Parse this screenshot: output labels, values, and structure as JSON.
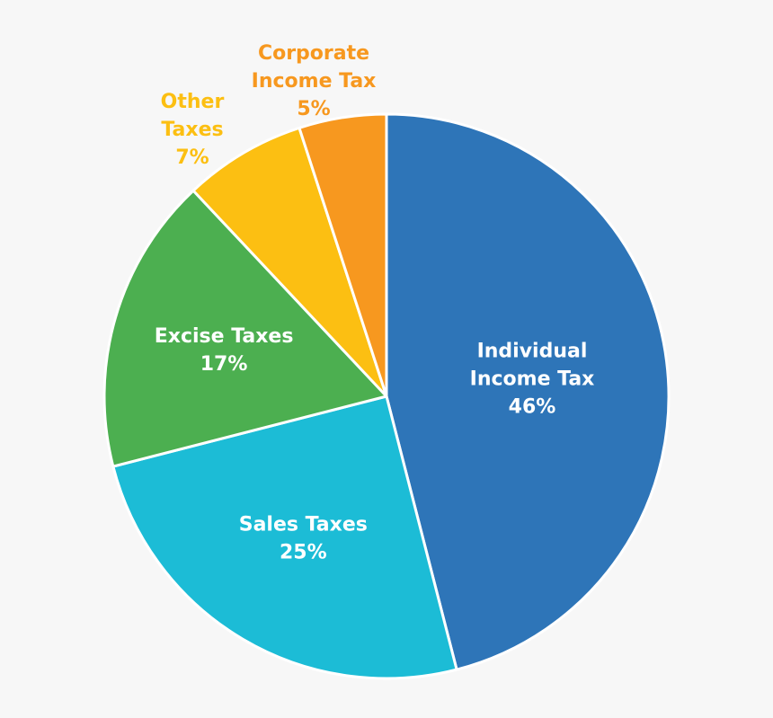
{
  "chart_data": {
    "type": "pie",
    "title": "",
    "slices": [
      {
        "label_lines": [
          "Individual",
          "Income Tax"
        ],
        "percent_label": "46%",
        "value": 46,
        "color": "#2e75b8",
        "label_color": "#ffffff",
        "label_position": "inside"
      },
      {
        "label_lines": [
          "Sales Taxes"
        ],
        "percent_label": "25%",
        "value": 25,
        "color": "#1cbcd6",
        "label_color": "#ffffff",
        "label_position": "inside"
      },
      {
        "label_lines": [
          "Excise Taxes"
        ],
        "percent_label": "17%",
        "value": 17,
        "color": "#4caf50",
        "label_color": "#ffffff",
        "label_position": "inside"
      },
      {
        "label_lines": [
          "Other",
          "Taxes"
        ],
        "percent_label": "7%",
        "value": 7,
        "color": "#fcbf12",
        "label_color": "#fcbf12",
        "label_position": "outside"
      },
      {
        "label_lines": [
          "Corporate",
          "Income Tax"
        ],
        "percent_label": "5%",
        "value": 5,
        "color": "#f7981f",
        "label_color": "#f7981f",
        "label_position": "outside"
      }
    ],
    "start_angle_deg": 0,
    "direction": "clockwise",
    "legend": "none"
  }
}
